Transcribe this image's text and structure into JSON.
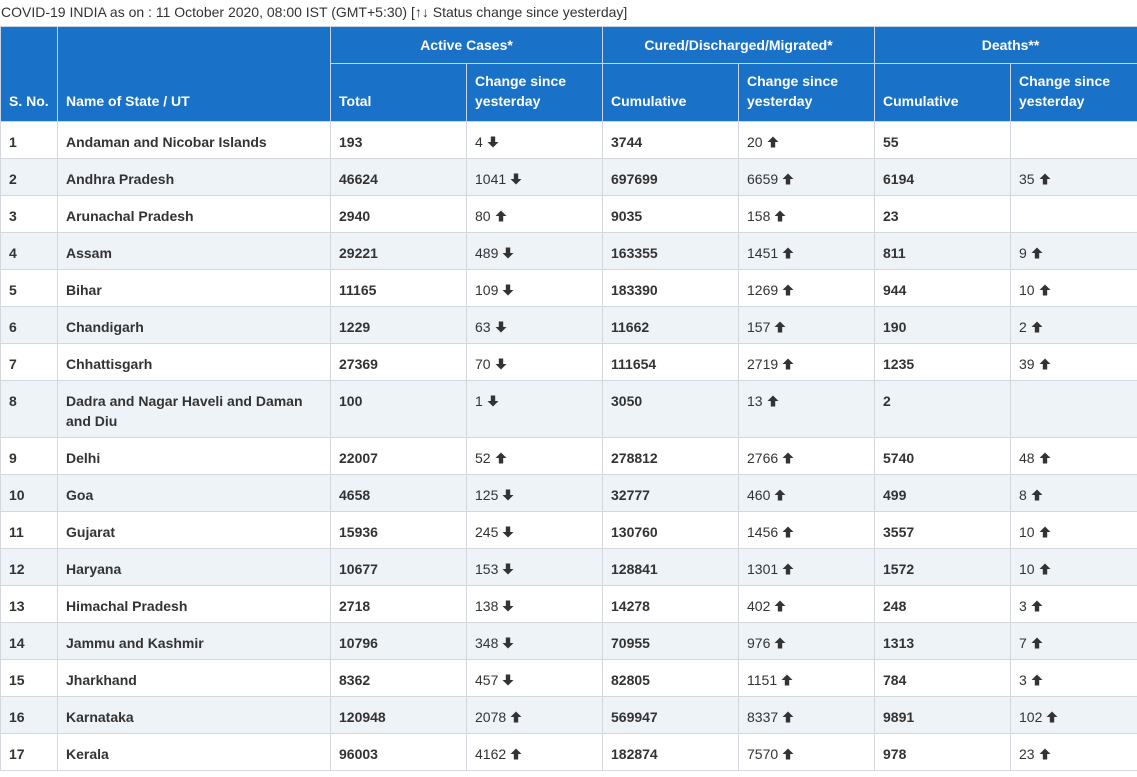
{
  "caption": "COVID-19 INDIA as on : 11 October 2020, 08:00 IST (GMT+5:30) [↑↓ Status change since yesterday]",
  "colors": {
    "header_bg": "#1a72c8",
    "increase": "#e01010",
    "decrease": "#149a14",
    "zebra": "#eef3f8"
  },
  "icons": {
    "up": "arrow-up-icon",
    "down": "arrow-down-icon"
  },
  "headers": {
    "sno": "S. No.",
    "name": "Name of State / UT",
    "active_group": "Active Cases*",
    "cured_group": "Cured/Discharged/Migrated*",
    "deaths_group": "Deaths**",
    "active_total": "Total",
    "active_change": "Change since yesterday",
    "cured_cum": "Cumulative",
    "cured_change": "Change since yesterday",
    "deaths_cum": "Cumulative",
    "deaths_change": "Change since yesterday"
  },
  "rows": [
    {
      "sno": "1",
      "name": "Andaman and Nicobar Islands",
      "active": "193",
      "active_chg": "4",
      "active_dir": "down",
      "cured": "3744",
      "cured_chg": "20",
      "cured_dir": "up",
      "deaths": "55",
      "deaths_chg": "",
      "deaths_dir": ""
    },
    {
      "sno": "2",
      "name": "Andhra Pradesh",
      "active": "46624",
      "active_chg": "1041",
      "active_dir": "down",
      "cured": "697699",
      "cured_chg": "6659",
      "cured_dir": "up",
      "deaths": "6194",
      "deaths_chg": "35",
      "deaths_dir": "up"
    },
    {
      "sno": "3",
      "name": "Arunachal Pradesh",
      "active": "2940",
      "active_chg": "80",
      "active_dir": "up",
      "cured": "9035",
      "cured_chg": "158",
      "cured_dir": "up",
      "deaths": "23",
      "deaths_chg": "",
      "deaths_dir": ""
    },
    {
      "sno": "4",
      "name": "Assam",
      "active": "29221",
      "active_chg": "489",
      "active_dir": "down",
      "cured": "163355",
      "cured_chg": "1451",
      "cured_dir": "up",
      "deaths": "811",
      "deaths_chg": "9",
      "deaths_dir": "up"
    },
    {
      "sno": "5",
      "name": "Bihar",
      "active": "11165",
      "active_chg": "109",
      "active_dir": "down",
      "cured": "183390",
      "cured_chg": "1269",
      "cured_dir": "up",
      "deaths": "944",
      "deaths_chg": "10",
      "deaths_dir": "up"
    },
    {
      "sno": "6",
      "name": "Chandigarh",
      "active": "1229",
      "active_chg": "63",
      "active_dir": "down",
      "cured": "11662",
      "cured_chg": "157",
      "cured_dir": "up",
      "deaths": "190",
      "deaths_chg": "2",
      "deaths_dir": "up"
    },
    {
      "sno": "7",
      "name": "Chhattisgarh",
      "active": "27369",
      "active_chg": "70",
      "active_dir": "down",
      "cured": "111654",
      "cured_chg": "2719",
      "cured_dir": "up",
      "deaths": "1235",
      "deaths_chg": "39",
      "deaths_dir": "up"
    },
    {
      "sno": "8",
      "name": "Dadra and Nagar Haveli and Daman and Diu",
      "active": "100",
      "active_chg": "1",
      "active_dir": "down",
      "cured": "3050",
      "cured_chg": "13",
      "cured_dir": "up",
      "deaths": "2",
      "deaths_chg": "",
      "deaths_dir": ""
    },
    {
      "sno": "9",
      "name": "Delhi",
      "active": "22007",
      "active_chg": "52",
      "active_dir": "up",
      "cured": "278812",
      "cured_chg": "2766",
      "cured_dir": "up",
      "deaths": "5740",
      "deaths_chg": "48",
      "deaths_dir": "up"
    },
    {
      "sno": "10",
      "name": "Goa",
      "active": "4658",
      "active_chg": "125",
      "active_dir": "down",
      "cured": "32777",
      "cured_chg": "460",
      "cured_dir": "up",
      "deaths": "499",
      "deaths_chg": "8",
      "deaths_dir": "up"
    },
    {
      "sno": "11",
      "name": "Gujarat",
      "active": "15936",
      "active_chg": "245",
      "active_dir": "down",
      "cured": "130760",
      "cured_chg": "1456",
      "cured_dir": "up",
      "deaths": "3557",
      "deaths_chg": "10",
      "deaths_dir": "up"
    },
    {
      "sno": "12",
      "name": "Haryana",
      "active": "10677",
      "active_chg": "153",
      "active_dir": "down",
      "cured": "128841",
      "cured_chg": "1301",
      "cured_dir": "up",
      "deaths": "1572",
      "deaths_chg": "10",
      "deaths_dir": "up"
    },
    {
      "sno": "13",
      "name": "Himachal Pradesh",
      "active": "2718",
      "active_chg": "138",
      "active_dir": "down",
      "cured": "14278",
      "cured_chg": "402",
      "cured_dir": "up",
      "deaths": "248",
      "deaths_chg": "3",
      "deaths_dir": "up"
    },
    {
      "sno": "14",
      "name": "Jammu and Kashmir",
      "active": "10796",
      "active_chg": "348",
      "active_dir": "down",
      "cured": "70955",
      "cured_chg": "976",
      "cured_dir": "up",
      "deaths": "1313",
      "deaths_chg": "7",
      "deaths_dir": "up"
    },
    {
      "sno": "15",
      "name": "Jharkhand",
      "active": "8362",
      "active_chg": "457",
      "active_dir": "down",
      "cured": "82805",
      "cured_chg": "1151",
      "cured_dir": "up",
      "deaths": "784",
      "deaths_chg": "3",
      "deaths_dir": "up"
    },
    {
      "sno": "16",
      "name": "Karnataka",
      "active": "120948",
      "active_chg": "2078",
      "active_dir": "up",
      "cured": "569947",
      "cured_chg": "8337",
      "cured_dir": "up",
      "deaths": "9891",
      "deaths_chg": "102",
      "deaths_dir": "up"
    },
    {
      "sno": "17",
      "name": "Kerala",
      "active": "96003",
      "active_chg": "4162",
      "active_dir": "up",
      "cured": "182874",
      "cured_chg": "7570",
      "cured_dir": "up",
      "deaths": "978",
      "deaths_chg": "23",
      "deaths_dir": "up"
    }
  ]
}
